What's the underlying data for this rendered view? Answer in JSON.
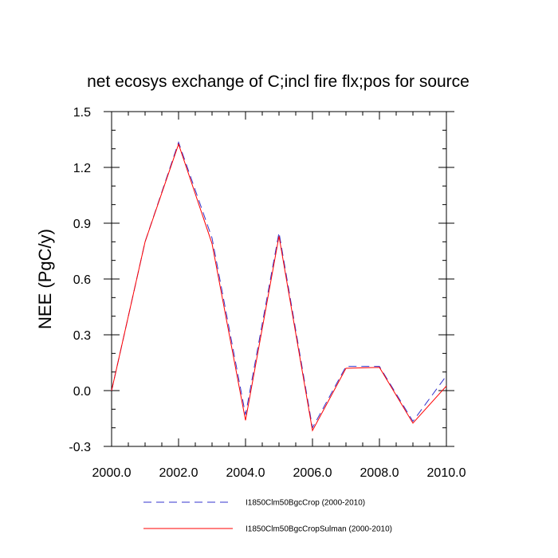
{
  "chart_data": {
    "type": "line",
    "title": "net ecosys exchange of C;incl fire flx;pos for source",
    "xlabel": "",
    "ylabel": "NEE  (PgC/y)",
    "xlim": [
      2000,
      2010
    ],
    "ylim": [
      -0.3,
      1.5
    ],
    "xticks": [
      2000,
      2002,
      2004,
      2006,
      2008,
      2010
    ],
    "xtick_labels": [
      "2000.0",
      "2002.0",
      "2004.0",
      "2006.0",
      "2008.0",
      "2010.0"
    ],
    "yticks": [
      -0.3,
      0.0,
      0.3,
      0.6,
      0.9,
      1.2,
      1.5
    ],
    "ytick_labels": [
      "-0.3",
      "0.0",
      "0.3",
      "0.6",
      "0.9",
      "1.2",
      "1.5"
    ],
    "x": [
      2000,
      2001,
      2002,
      2003,
      2004,
      2005,
      2006,
      2007,
      2008,
      2009,
      2010
    ],
    "series": [
      {
        "name": "I1850Clm50BgcCrop (2000-2010)",
        "color": "#3333cc",
        "style": "dashed",
        "values": [
          0.0,
          0.8,
          1.335,
          0.82,
          -0.13,
          0.85,
          -0.2,
          0.13,
          0.13,
          -0.165,
          0.08
        ]
      },
      {
        "name": "I1850Clm50BgcCropSulman (2000-2010)",
        "color": "#ff0000",
        "style": "solid",
        "values": [
          0.0,
          0.8,
          1.325,
          0.79,
          -0.16,
          0.83,
          -0.215,
          0.12,
          0.125,
          -0.175,
          0.025
        ]
      }
    ],
    "grid": false,
    "legend_position": "bottom"
  }
}
